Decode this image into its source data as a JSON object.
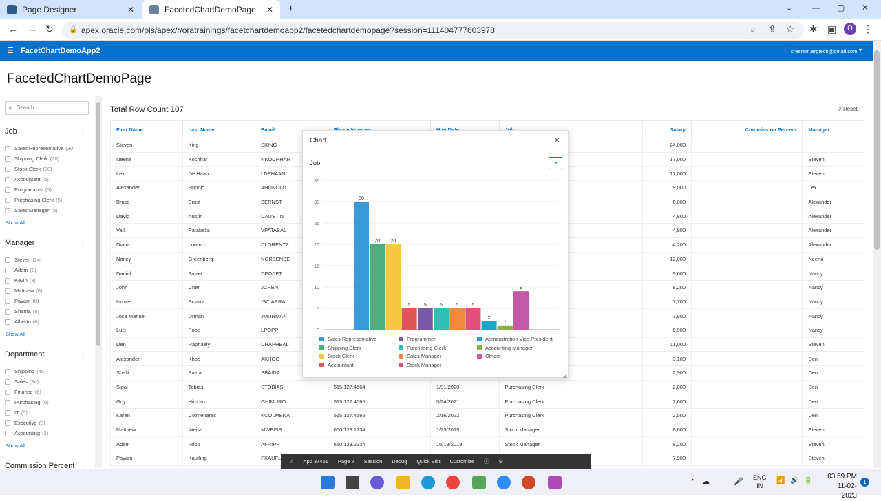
{
  "browser": {
    "tabs": [
      {
        "label": "Page Designer",
        "color": "#2f5c8a"
      },
      {
        "label": "FacetedChartDemoPage",
        "color": "#6a7f99"
      }
    ],
    "url": "apex.oracle.com/pls/apex/r/oratrainings/facetchartdemoapp2/facetedchartdemopage?session=111404777603978",
    "profile_initial": "O"
  },
  "app": {
    "name": "FacetChartDemoApp2",
    "user": "sreeram.erptech@gmail.com",
    "page_title": "FacetedChartDemoPage",
    "accent": "#0572ce"
  },
  "facets": {
    "search_placeholder": "Search...",
    "show_all": "Show All",
    "groups": [
      {
        "title": "Job",
        "items": [
          {
            "label": "Sales Representative",
            "count": "(30)"
          },
          {
            "label": "Shipping Clerk",
            "count": "(20)"
          },
          {
            "label": "Stock Clerk",
            "count": "(20)"
          },
          {
            "label": "Accountant",
            "count": "(5)"
          },
          {
            "label": "Programmer",
            "count": "(5)"
          },
          {
            "label": "Purchasing Clerk",
            "count": "(5)"
          },
          {
            "label": "Sales Manager",
            "count": "(5)"
          }
        ]
      },
      {
        "title": "Manager",
        "items": [
          {
            "label": "Steven",
            "count": "(14)"
          },
          {
            "label": "Adam",
            "count": "(8)"
          },
          {
            "label": "Kevin",
            "count": "(8)"
          },
          {
            "label": "Matthew",
            "count": "(8)"
          },
          {
            "label": "Payam",
            "count": "(8)"
          },
          {
            "label": "Shanta",
            "count": "(8)"
          },
          {
            "label": "Alberto",
            "count": "(6)"
          }
        ]
      },
      {
        "title": "Department",
        "items": [
          {
            "label": "Shipping",
            "count": "(45)"
          },
          {
            "label": "Sales",
            "count": "(34)"
          },
          {
            "label": "Finance",
            "count": "(6)"
          },
          {
            "label": "Purchasing",
            "count": "(6)"
          },
          {
            "label": "IT",
            "count": "(5)"
          },
          {
            "label": "Executive",
            "count": "(3)"
          },
          {
            "label": "Accounting",
            "count": "(2)"
          }
        ]
      },
      {
        "title": "Commission Percent",
        "items": []
      }
    ]
  },
  "report": {
    "row_count": "Total Row Count 107",
    "reset": "Reset",
    "columns": [
      "First Name",
      "Last Name",
      "Email",
      "Phone Number",
      "Hire Date",
      "Job",
      "Salary",
      "Commission Percent",
      "Manager"
    ],
    "rows": [
      [
        "Steven",
        "King",
        "SKING",
        "",
        "",
        "",
        "24,000",
        "",
        ""
      ],
      [
        "Neena",
        "Kochhar",
        "NKOCHHAR",
        "",
        "",
        "",
        "17,000",
        "",
        "Steven"
      ],
      [
        "Lex",
        "De Haan",
        "LDEHAAN",
        "",
        "",
        "",
        "17,000",
        "",
        "Steven"
      ],
      [
        "Alexander",
        "Hunold",
        "AHUNOLD",
        "",
        "",
        "",
        "9,000",
        "",
        "Lex"
      ],
      [
        "Bruce",
        "Ernst",
        "BERNST",
        "",
        "",
        "",
        "6,000",
        "",
        "Alexander"
      ],
      [
        "David",
        "Austin",
        "DAUSTIN",
        "",
        "",
        "",
        "4,800",
        "",
        "Alexander"
      ],
      [
        "Valli",
        "Pataballa",
        "VPATABAL",
        "",
        "",
        "",
        "4,800",
        "",
        "Alexander"
      ],
      [
        "Diana",
        "Lorentz",
        "DLORENTZ",
        "",
        "",
        "",
        "4,200",
        "",
        "Alexander"
      ],
      [
        "Nancy",
        "Greenberg",
        "NGREENBE",
        "",
        "",
        "",
        "12,000",
        "",
        "Neena"
      ],
      [
        "Daniel",
        "Faviet",
        "DFAVIET",
        "",
        "",
        "",
        "9,000",
        "",
        "Nancy"
      ],
      [
        "John",
        "Chen",
        "JCHEN",
        "",
        "",
        "",
        "8,200",
        "",
        "Nancy"
      ],
      [
        "Ismael",
        "Sciarra",
        "ISCIARRA",
        "",
        "",
        "",
        "7,700",
        "",
        "Nancy"
      ],
      [
        "Jose Manuel",
        "Urman",
        "JMURMAN",
        "",
        "",
        "",
        "7,800",
        "",
        "Nancy"
      ],
      [
        "Luis",
        "Popp",
        "LPOPP",
        "",
        "",
        "",
        "6,900",
        "",
        "Nancy"
      ],
      [
        "Den",
        "Raphaely",
        "DRAPHEAL",
        "",
        "",
        "",
        "11,000",
        "",
        "Steven"
      ],
      [
        "Alexander",
        "Khoo",
        "AKHOO",
        "",
        "",
        "",
        "3,100",
        "",
        "Den"
      ],
      [
        "Shelli",
        "Baida",
        "SBAIDA",
        "",
        "",
        "",
        "2,900",
        "",
        "Den"
      ],
      [
        "Sigal",
        "Tobias",
        "STOBIAS",
        "515.127.4564",
        "1/31/2020",
        "Purchasing Clerk",
        "2,800",
        "",
        "Den"
      ],
      [
        "Guy",
        "Himuro",
        "GHIMURO",
        "515.127.4565",
        "5/24/2021",
        "Purchasing Clerk",
        "2,600",
        "",
        "Den"
      ],
      [
        "Karen",
        "Colmenares",
        "KCOLMENA",
        "515.127.4566",
        "2/16/2022",
        "Purchasing Clerk",
        "2,500",
        "",
        "Den"
      ],
      [
        "Matthew",
        "Weiss",
        "MWEISS",
        "650.123.1234",
        "1/25/2019",
        "Stock Manager",
        "8,000",
        "",
        "Steven"
      ],
      [
        "Adam",
        "Fripp",
        "AFRIPP",
        "650.123.2234",
        "10/18/2019",
        "Stock Manager",
        "8,200",
        "",
        "Steven"
      ],
      [
        "Payam",
        "Kaufling",
        "PKAUFLIN",
        "",
        "",
        "",
        "7,900",
        "",
        "Steven"
      ]
    ]
  },
  "dialog": {
    "title": "Chart",
    "chart_title": "Job"
  },
  "chart_data": {
    "type": "bar",
    "title": "Job",
    "categories": [
      "Sales Representative",
      "Shipping Clerk",
      "Stock Clerk",
      "Accountant",
      "Programmer",
      "Purchasing Clerk",
      "Sales Manager",
      "Stock Manager",
      "Administration Vice President",
      "Accounting Manager",
      "Others"
    ],
    "values": [
      30,
      20,
      20,
      5,
      5,
      5,
      5,
      5,
      2,
      1,
      9
    ],
    "colors": [
      "#3a9ad9",
      "#4caf7d",
      "#f5c842",
      "#e05555",
      "#7a5aa6",
      "#2fbfb3",
      "#f08a3c",
      "#e0507a",
      "#1aa8c9",
      "#8ab04a",
      "#c05aa6"
    ],
    "ylim": [
      0,
      35
    ],
    "yticks": [
      0,
      5,
      10,
      15,
      20,
      25,
      30,
      35
    ],
    "grid": true,
    "legend": "bottom",
    "legend_order": [
      0,
      4,
      8,
      1,
      5,
      9,
      2,
      6,
      10,
      3,
      7
    ]
  },
  "devbar": [
    "App 37451",
    "Page 2",
    "Session",
    "Debug",
    "Quick Edit",
    "Customize"
  ],
  "taskbar": {
    "lang": "ENG",
    "region": "IN",
    "time": "03:59 PM",
    "date": "11-02-2023"
  }
}
